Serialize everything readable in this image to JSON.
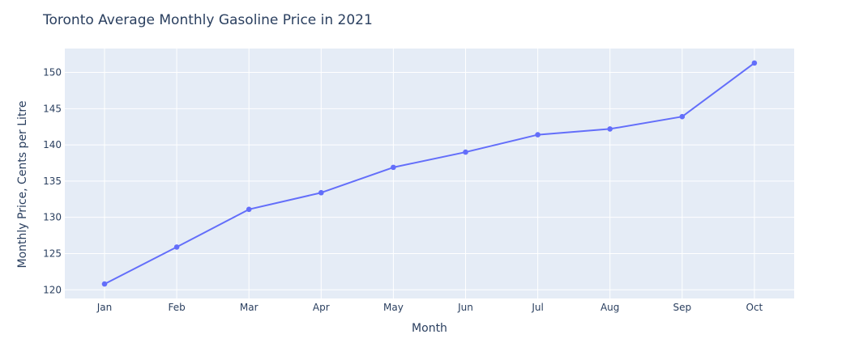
{
  "chart_data": {
    "type": "line",
    "title": "Toronto Average Monthly Gasoline Price in 2021",
    "xlabel": "Month",
    "ylabel": "Monthly Price, Cents per Litre",
    "categories": [
      "Jan",
      "Feb",
      "Mar",
      "Apr",
      "May",
      "Jun",
      "Jul",
      "Aug",
      "Sep",
      "Oct"
    ],
    "series": [
      {
        "values": [
          120.8,
          125.9,
          131.1,
          133.4,
          136.9,
          139.0,
          141.4,
          142.2,
          143.9,
          151.3
        ]
      }
    ],
    "ylim": [
      118.8,
      153.3
    ],
    "yticks": [
      120,
      125,
      130,
      135,
      140,
      145,
      150
    ],
    "grid": true,
    "legend": "none",
    "colors": {
      "line": "#636efa",
      "plot_bg": "#e5ecf6",
      "grid": "#ffffff",
      "text": "#2a3f5f"
    }
  }
}
